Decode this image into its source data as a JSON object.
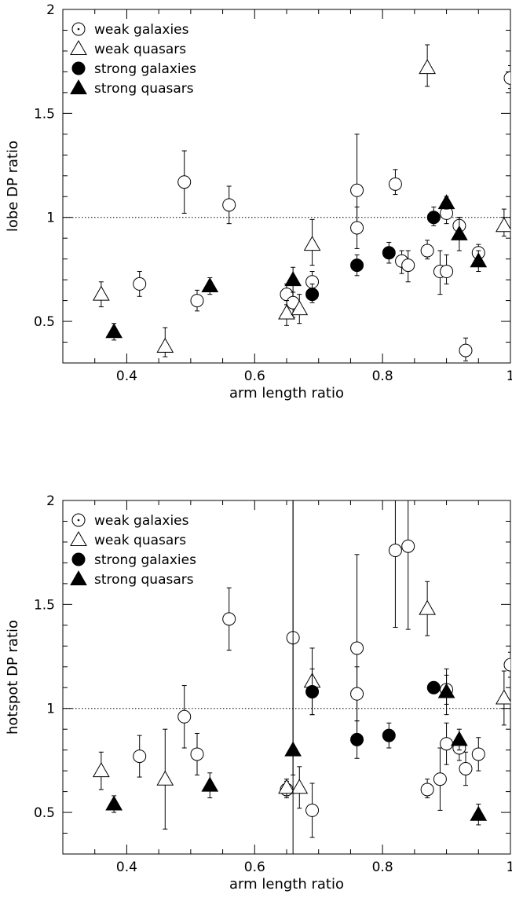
{
  "chart_data": [
    {
      "type": "scatter",
      "xlabel": "arm length ratio",
      "ylabel": "lobe DP ratio",
      "xlim": [
        0.3,
        1.0
      ],
      "ylim": [
        0.3,
        2.0
      ],
      "xticks": [
        0.4,
        0.6,
        0.8,
        1
      ],
      "xtick_labels": [
        "0.4",
        "0.6",
        "0.8",
        "1"
      ],
      "yticks": [
        0.5,
        1,
        1.5,
        2
      ],
      "ytick_labels": [
        "0.5",
        "1",
        "1.5",
        "2"
      ],
      "reference_line": 1,
      "legend_position": "top-left",
      "series": [
        {
          "name": "weak galaxies",
          "marker": "open-circle",
          "points": [
            {
              "x": 0.42,
              "y": 0.68,
              "err_lo": 0.06,
              "err_hi": 0.06
            },
            {
              "x": 0.49,
              "y": 1.17,
              "err_lo": 0.15,
              "err_hi": 0.15
            },
            {
              "x": 0.51,
              "y": 0.6,
              "err_lo": 0.05,
              "err_hi": 0.05
            },
            {
              "x": 0.56,
              "y": 1.06,
              "err_lo": 0.09,
              "err_hi": 0.09
            },
            {
              "x": 0.65,
              "y": 0.63,
              "err_lo": 0.05,
              "err_hi": 0.05
            },
            {
              "x": 0.66,
              "y": 0.59,
              "err_lo": 0.07,
              "err_hi": 0.05
            },
            {
              "x": 0.69,
              "y": 0.69,
              "err_lo": 0.04,
              "err_hi": 0.05
            },
            {
              "x": 0.76,
              "y": 1.13,
              "err_lo": 0.18,
              "err_hi": 0.27
            },
            {
              "x": 0.76,
              "y": 0.95,
              "err_lo": 0.1,
              "err_hi": 0.1
            },
            {
              "x": 0.82,
              "y": 1.16,
              "err_lo": 0.05,
              "err_hi": 0.07
            },
            {
              "x": 0.83,
              "y": 0.79,
              "err_lo": 0.06,
              "err_hi": 0.05
            },
            {
              "x": 0.84,
              "y": 0.77,
              "err_lo": 0.08,
              "err_hi": 0.07
            },
            {
              "x": 0.87,
              "y": 0.84,
              "err_lo": 0.04,
              "err_hi": 0.05
            },
            {
              "x": 0.89,
              "y": 0.74,
              "err_lo": 0.11,
              "err_hi": 0.1
            },
            {
              "x": 0.9,
              "y": 0.74,
              "err_lo": 0.06,
              "err_hi": 0.08
            },
            {
              "x": 0.9,
              "y": 1.02,
              "err_lo": 0.05,
              "err_hi": 0.04
            },
            {
              "x": 0.92,
              "y": 0.96,
              "err_lo": 0.04,
              "err_hi": 0.04
            },
            {
              "x": 0.93,
              "y": 0.36,
              "err_lo": 0.05,
              "err_hi": 0.06
            },
            {
              "x": 0.95,
              "y": 0.83,
              "err_lo": 0.04,
              "err_hi": 0.04
            },
            {
              "x": 1.0,
              "y": 1.67,
              "err_lo": 0.05,
              "err_hi": 0.06
            }
          ]
        },
        {
          "name": "weak quasars",
          "marker": "open-triangle",
          "points": [
            {
              "x": 0.36,
              "y": 0.63,
              "err_lo": 0.06,
              "err_hi": 0.06
            },
            {
              "x": 0.46,
              "y": 0.38,
              "err_lo": 0.05,
              "err_hi": 0.09
            },
            {
              "x": 0.65,
              "y": 0.54,
              "err_lo": 0.06,
              "err_hi": 0.06
            },
            {
              "x": 0.67,
              "y": 0.56,
              "err_lo": 0.07,
              "err_hi": 0.07
            },
            {
              "x": 0.69,
              "y": 0.87,
              "err_lo": 0.1,
              "err_hi": 0.12
            },
            {
              "x": 0.87,
              "y": 1.72,
              "err_lo": 0.09,
              "err_hi": 0.11
            },
            {
              "x": 0.99,
              "y": 0.96,
              "err_lo": 0.05,
              "err_hi": 0.08
            }
          ]
        },
        {
          "name": "strong galaxies",
          "marker": "filled-circle",
          "points": [
            {
              "x": 0.69,
              "y": 0.63,
              "err_lo": 0.04,
              "err_hi": 0.05
            },
            {
              "x": 0.76,
              "y": 0.77,
              "err_lo": 0.05,
              "err_hi": 0.05
            },
            {
              "x": 0.81,
              "y": 0.83,
              "err_lo": 0.05,
              "err_hi": 0.05
            },
            {
              "x": 0.88,
              "y": 1.0,
              "err_lo": 0.04,
              "err_hi": 0.05
            }
          ]
        },
        {
          "name": "strong quasars",
          "marker": "filled-triangle",
          "points": [
            {
              "x": 0.38,
              "y": 0.45,
              "err_lo": 0.04,
              "err_hi": 0.04
            },
            {
              "x": 0.53,
              "y": 0.67,
              "err_lo": 0.04,
              "err_hi": 0.04
            },
            {
              "x": 0.66,
              "y": 0.7,
              "err_lo": 0.06,
              "err_hi": 0.06
            },
            {
              "x": 0.9,
              "y": 1.07,
              "err_lo": 0.03,
              "err_hi": 0.03
            },
            {
              "x": 0.92,
              "y": 0.92,
              "err_lo": 0.08,
              "err_hi": 0.08
            },
            {
              "x": 0.95,
              "y": 0.79,
              "err_lo": 0.05,
              "err_hi": 0.05
            }
          ]
        }
      ]
    },
    {
      "type": "scatter",
      "xlabel": "arm length ratio",
      "ylabel": "hotspot DP ratio",
      "xlim": [
        0.3,
        1.0
      ],
      "ylim": [
        0.3,
        2.0
      ],
      "xticks": [
        0.4,
        0.6,
        0.8,
        1
      ],
      "xtick_labels": [
        "0.4",
        "0.6",
        "0.8",
        "1"
      ],
      "yticks": [
        0.5,
        1,
        1.5,
        2
      ],
      "ytick_labels": [
        "0.5",
        "1",
        "1.5",
        "2"
      ],
      "reference_line": 1,
      "legend_position": "top-left",
      "series": [
        {
          "name": "weak galaxies",
          "marker": "open-circle",
          "points": [
            {
              "x": 0.42,
              "y": 0.77,
              "err_lo": 0.1,
              "err_hi": 0.1
            },
            {
              "x": 0.49,
              "y": 0.96,
              "err_lo": 0.15,
              "err_hi": 0.15
            },
            {
              "x": 0.51,
              "y": 0.78,
              "err_lo": 0.1,
              "err_hi": 0.1
            },
            {
              "x": 0.56,
              "y": 1.43,
              "err_lo": 0.15,
              "err_hi": 0.15
            },
            {
              "x": 0.65,
              "y": 0.61,
              "err_lo": 0.04,
              "err_hi": 0.04
            },
            {
              "x": 0.66,
              "y": 1.34,
              "err_lo": 0.66,
              "err_hi": 0.66
            },
            {
              "x": 0.69,
              "y": 0.51,
              "err_lo": 0.13,
              "err_hi": 0.13
            },
            {
              "x": 0.76,
              "y": 1.29,
              "err_lo": 0.45,
              "err_hi": 0.45
            },
            {
              "x": 0.76,
              "y": 1.07,
              "err_lo": 0.13,
              "err_hi": 0.13
            },
            {
              "x": 0.82,
              "y": 1.76,
              "err_lo": 0.37,
              "err_hi": 0.3
            },
            {
              "x": 0.84,
              "y": 1.78,
              "err_lo": 0.4,
              "err_hi": 0.3
            },
            {
              "x": 0.87,
              "y": 0.61,
              "err_lo": 0.04,
              "err_hi": 0.05
            },
            {
              "x": 0.89,
              "y": 0.66,
              "err_lo": 0.15,
              "err_hi": 0.15
            },
            {
              "x": 0.9,
              "y": 0.83,
              "err_lo": 0.1,
              "err_hi": 0.1
            },
            {
              "x": 0.9,
              "y": 1.09,
              "err_lo": 0.07,
              "err_hi": 0.07
            },
            {
              "x": 0.92,
              "y": 0.81,
              "err_lo": 0.06,
              "err_hi": 0.06
            },
            {
              "x": 0.93,
              "y": 0.71,
              "err_lo": 0.08,
              "err_hi": 0.08
            },
            {
              "x": 0.95,
              "y": 0.78,
              "err_lo": 0.08,
              "err_hi": 0.08
            },
            {
              "x": 1.0,
              "y": 1.21,
              "err_lo": 0.06,
              "err_hi": 0.06
            }
          ]
        },
        {
          "name": "weak quasars",
          "marker": "open-triangle",
          "points": [
            {
              "x": 0.36,
              "y": 0.7,
              "err_lo": 0.09,
              "err_hi": 0.09
            },
            {
              "x": 0.46,
              "y": 0.66,
              "err_lo": 0.24,
              "err_hi": 0.24
            },
            {
              "x": 0.65,
              "y": 0.62,
              "err_lo": 0.04,
              "err_hi": 0.04
            },
            {
              "x": 0.67,
              "y": 0.62,
              "err_lo": 0.1,
              "err_hi": 0.1
            },
            {
              "x": 0.69,
              "y": 1.13,
              "err_lo": 0.16,
              "err_hi": 0.16
            },
            {
              "x": 0.87,
              "y": 1.48,
              "err_lo": 0.13,
              "err_hi": 0.13
            },
            {
              "x": 0.99,
              "y": 1.05,
              "err_lo": 0.13,
              "err_hi": 0.13
            }
          ]
        },
        {
          "name": "strong galaxies",
          "marker": "filled-circle",
          "points": [
            {
              "x": 0.69,
              "y": 1.08,
              "err_lo": 0.11,
              "err_hi": 0.11
            },
            {
              "x": 0.76,
              "y": 0.85,
              "err_lo": 0.09,
              "err_hi": 0.09
            },
            {
              "x": 0.81,
              "y": 0.87,
              "err_lo": 0.06,
              "err_hi": 0.06
            },
            {
              "x": 0.88,
              "y": 1.1,
              "err_lo": 0.02,
              "err_hi": 0.02
            }
          ]
        },
        {
          "name": "strong quasars",
          "marker": "filled-triangle",
          "points": [
            {
              "x": 0.38,
              "y": 0.54,
              "err_lo": 0.04,
              "err_hi": 0.04
            },
            {
              "x": 0.53,
              "y": 0.63,
              "err_lo": 0.06,
              "err_hi": 0.06
            },
            {
              "x": 0.66,
              "y": 0.8,
              "err_lo": 0.8,
              "err_hi": 1.2
            },
            {
              "x": 0.9,
              "y": 1.08,
              "err_lo": 0.11,
              "err_hi": 0.11
            },
            {
              "x": 0.92,
              "y": 0.85,
              "err_lo": 0.05,
              "err_hi": 0.05
            },
            {
              "x": 0.95,
              "y": 0.49,
              "err_lo": 0.05,
              "err_hi": 0.05
            }
          ]
        }
      ]
    }
  ]
}
